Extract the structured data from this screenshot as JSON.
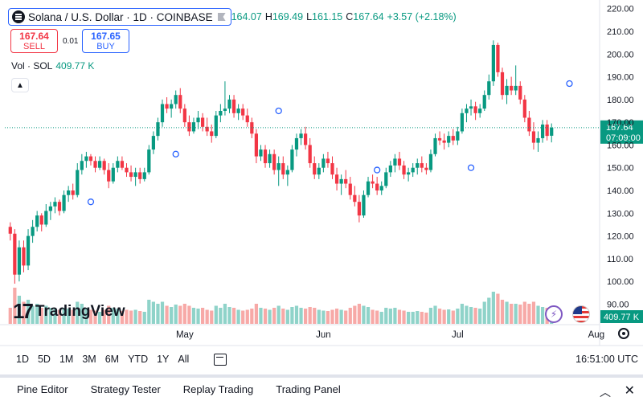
{
  "symbol": {
    "title": "Solana / U.S. Dollar · 1D · COINBASE"
  },
  "ohlc": {
    "open_value": "164.07",
    "high_label": "H",
    "high_value": "169.49",
    "low_label": "L",
    "low_value": "161.15",
    "close_label": "C",
    "close_value": "167.64",
    "change": "+3.57 (+2.18%)"
  },
  "trade": {
    "sell_price": "167.64",
    "sell_label": "SELL",
    "spread": "0.01",
    "buy_price": "167.65",
    "buy_label": "BUY"
  },
  "volume_legend": {
    "label": "Vol · SOL",
    "value": "409.77 K"
  },
  "branding": {
    "logo_text": "TradingView"
  },
  "price_axis": {
    "ticks": [
      "220.00",
      "210.00",
      "200.00",
      "190.00",
      "180.00",
      "170.00",
      "160.00",
      "150.00",
      "140.00",
      "130.00",
      "120.00",
      "110.00",
      "100.00",
      "90.00"
    ],
    "last_price": "167.64",
    "countdown": "07:09:00",
    "volume_badge": "409.77 K"
  },
  "time_axis": {
    "labels": [
      "May",
      "Jun",
      "Jul",
      "Aug"
    ]
  },
  "range_bar": {
    "ranges": [
      "1D",
      "5D",
      "1M",
      "3M",
      "6M",
      "YTD",
      "1Y",
      "All"
    ],
    "clock": "16:51:00 UTC"
  },
  "bottom_tabs": [
    "Pine Editor",
    "Strategy Tester",
    "Replay Trading",
    "Trading Panel"
  ],
  "colors": {
    "up": "#089981",
    "down": "#f23645",
    "vol_up": "#8fd3c9",
    "vol_down": "#f7a9a7",
    "accent": "#2962ff"
  },
  "chart_data": {
    "type": "candlestick",
    "title": "Solana / U.S. Dollar · 1D · COINBASE",
    "y_range": [
      87,
      222
    ],
    "x_labels": [
      {
        "label": "May",
        "index": 39
      },
      {
        "label": "Jun",
        "index": 70
      },
      {
        "label": "Jul",
        "index": 100
      },
      {
        "label": "Aug",
        "index": 131
      }
    ],
    "volume_max": 1.0,
    "candles": [
      [
        124,
        126,
        118,
        121,
        0.4
      ],
      [
        121,
        123,
        99,
        103,
        0.9
      ],
      [
        103,
        118,
        100,
        115,
        0.7
      ],
      [
        115,
        118,
        104,
        107,
        0.55
      ],
      [
        107,
        123,
        105,
        120,
        0.6
      ],
      [
        120,
        127,
        117,
        124,
        0.45
      ],
      [
        124,
        131,
        122,
        129,
        0.5
      ],
      [
        129,
        130,
        122,
        125,
        0.4
      ],
      [
        125,
        134,
        124,
        131,
        0.45
      ],
      [
        131,
        135,
        127,
        133,
        0.4
      ],
      [
        133,
        137,
        130,
        135,
        0.38
      ],
      [
        135,
        136,
        129,
        131,
        0.35
      ],
      [
        131,
        140,
        130,
        138,
        0.4
      ],
      [
        138,
        142,
        135,
        140,
        0.38
      ],
      [
        140,
        143,
        136,
        138,
        0.35
      ],
      [
        138,
        152,
        137,
        149,
        0.55
      ],
      [
        149,
        156,
        147,
        153,
        0.5
      ],
      [
        153,
        157,
        150,
        155,
        0.4
      ],
      [
        155,
        156,
        151,
        153,
        0.35
      ],
      [
        153,
        155,
        148,
        150,
        0.33
      ],
      [
        150,
        155,
        149,
        153,
        0.3
      ],
      [
        153,
        154,
        147,
        149,
        0.35
      ],
      [
        149,
        152,
        141,
        144,
        0.45
      ],
      [
        144,
        152,
        143,
        150,
        0.4
      ],
      [
        150,
        155,
        148,
        153,
        0.38
      ],
      [
        153,
        155,
        149,
        150,
        0.32
      ],
      [
        150,
        152,
        146,
        148,
        0.35
      ],
      [
        148,
        151,
        144,
        146,
        0.33
      ],
      [
        146,
        150,
        142,
        148,
        0.35
      ],
      [
        148,
        150,
        143,
        145,
        0.32
      ],
      [
        145,
        150,
        144,
        148,
        0.3
      ],
      [
        148,
        160,
        147,
        158,
        0.6
      ],
      [
        158,
        166,
        156,
        164,
        0.55
      ],
      [
        164,
        172,
        162,
        170,
        0.5
      ],
      [
        170,
        180,
        168,
        178,
        0.55
      ],
      [
        178,
        181,
        174,
        176,
        0.45
      ],
      [
        176,
        180,
        172,
        178,
        0.42
      ],
      [
        178,
        184,
        176,
        182,
        0.48
      ],
      [
        182,
        185,
        174,
        176,
        0.45
      ],
      [
        176,
        178,
        168,
        170,
        0.5
      ],
      [
        170,
        173,
        164,
        166,
        0.45
      ],
      [
        166,
        172,
        165,
        170,
        0.4
      ],
      [
        170,
        175,
        167,
        172,
        0.38
      ],
      [
        172,
        174,
        166,
        168,
        0.4
      ],
      [
        168,
        172,
        164,
        166,
        0.35
      ],
      [
        166,
        169,
        161,
        164,
        0.33
      ],
      [
        164,
        175,
        163,
        173,
        0.45
      ],
      [
        173,
        178,
        170,
        175,
        0.4
      ],
      [
        175,
        188,
        173,
        176,
        0.5
      ],
      [
        176,
        182,
        174,
        180,
        0.42
      ],
      [
        180,
        182,
        172,
        174,
        0.4
      ],
      [
        174,
        178,
        171,
        176,
        0.35
      ],
      [
        176,
        178,
        171,
        173,
        0.33
      ],
      [
        173,
        176,
        168,
        170,
        0.35
      ],
      [
        170,
        172,
        163,
        165,
        0.38
      ],
      [
        165,
        167,
        152,
        155,
        0.5
      ],
      [
        155,
        160,
        153,
        158,
        0.4
      ],
      [
        158,
        160,
        150,
        152,
        0.38
      ],
      [
        152,
        158,
        150,
        156,
        0.35
      ],
      [
        156,
        158,
        147,
        149,
        0.4
      ],
      [
        149,
        155,
        142,
        152,
        0.45
      ],
      [
        152,
        155,
        145,
        147,
        0.38
      ],
      [
        147,
        151,
        142,
        149,
        0.35
      ],
      [
        149,
        160,
        148,
        158,
        0.42
      ],
      [
        158,
        165,
        155,
        163,
        0.45
      ],
      [
        163,
        167,
        160,
        165,
        0.4
      ],
      [
        165,
        168,
        158,
        160,
        0.38
      ],
      [
        160,
        163,
        150,
        152,
        0.42
      ],
      [
        152,
        155,
        145,
        147,
        0.4
      ],
      [
        147,
        152,
        145,
        150,
        0.35
      ],
      [
        150,
        156,
        148,
        154,
        0.33
      ],
      [
        154,
        157,
        150,
        152,
        0.32
      ],
      [
        152,
        155,
        145,
        147,
        0.35
      ],
      [
        147,
        150,
        140,
        143,
        0.38
      ],
      [
        143,
        147,
        138,
        145,
        0.35
      ],
      [
        145,
        149,
        141,
        143,
        0.33
      ],
      [
        143,
        146,
        136,
        138,
        0.4
      ],
      [
        138,
        142,
        133,
        135,
        0.45
      ],
      [
        135,
        138,
        126,
        129,
        0.5
      ],
      [
        129,
        140,
        128,
        138,
        0.45
      ],
      [
        138,
        146,
        137,
        144,
        0.42
      ],
      [
        144,
        147,
        141,
        143,
        0.35
      ],
      [
        143,
        146,
        138,
        140,
        0.33
      ],
      [
        140,
        144,
        138,
        142,
        0.3
      ],
      [
        142,
        150,
        141,
        148,
        0.4
      ],
      [
        148,
        153,
        146,
        151,
        0.38
      ],
      [
        151,
        156,
        148,
        154,
        0.4
      ],
      [
        154,
        157,
        149,
        151,
        0.35
      ],
      [
        151,
        153,
        145,
        147,
        0.33
      ],
      [
        147,
        150,
        144,
        148,
        0.3
      ],
      [
        148,
        152,
        146,
        150,
        0.3
      ],
      [
        150,
        154,
        147,
        152,
        0.32
      ],
      [
        152,
        155,
        148,
        150,
        0.3
      ],
      [
        150,
        152,
        147,
        149,
        0.28
      ],
      [
        149,
        158,
        148,
        156,
        0.4
      ],
      [
        156,
        165,
        155,
        163,
        0.45
      ],
      [
        163,
        166,
        160,
        162,
        0.38
      ],
      [
        162,
        165,
        158,
        161,
        0.35
      ],
      [
        161,
        166,
        159,
        164,
        0.36
      ],
      [
        164,
        167,
        160,
        162,
        0.33
      ],
      [
        162,
        168,
        160,
        166,
        0.38
      ],
      [
        166,
        176,
        165,
        174,
        0.5
      ],
      [
        174,
        178,
        170,
        176,
        0.45
      ],
      [
        176,
        180,
        173,
        177,
        0.42
      ],
      [
        177,
        179,
        171,
        174,
        0.4
      ],
      [
        174,
        178,
        172,
        176,
        0.38
      ],
      [
        176,
        184,
        175,
        182,
        0.55
      ],
      [
        182,
        191,
        180,
        188,
        0.65
      ],
      [
        188,
        206,
        186,
        204,
        0.8
      ],
      [
        204,
        205,
        190,
        192,
        0.75
      ],
      [
        192,
        194,
        180,
        182,
        0.6
      ],
      [
        182,
        189,
        178,
        186,
        0.55
      ],
      [
        186,
        190,
        182,
        184,
        0.5
      ],
      [
        184,
        195,
        182,
        186,
        0.5
      ],
      [
        186,
        188,
        178,
        180,
        0.48
      ],
      [
        180,
        182,
        170,
        172,
        0.55
      ],
      [
        172,
        175,
        164,
        166,
        0.5
      ],
      [
        166,
        170,
        158,
        161,
        0.55
      ],
      [
        161,
        166,
        157,
        163,
        0.45
      ],
      [
        163,
        171,
        161,
        169,
        0.42
      ],
      [
        169,
        171,
        162,
        164,
        0.4
      ],
      [
        164.07,
        169.49,
        161.15,
        167.64,
        0.3
      ]
    ],
    "markers": [
      {
        "index": 18,
        "price": 135
      },
      {
        "index": 37,
        "price": 156
      },
      {
        "index": 60,
        "price": 175
      },
      {
        "index": 82,
        "price": 149
      },
      {
        "index": 103,
        "price": 150
      },
      {
        "index": 125,
        "price": 187
      }
    ],
    "last_price": 167.64
  }
}
